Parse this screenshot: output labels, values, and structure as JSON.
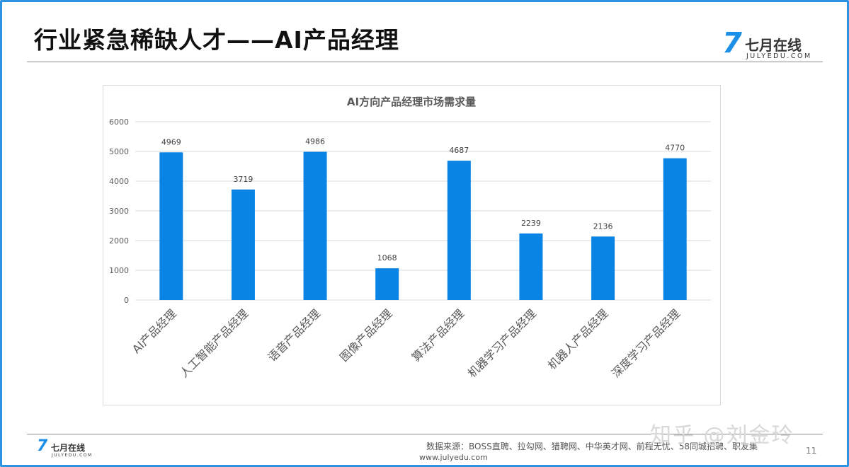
{
  "slide": {
    "title": "行业紧急稀缺人才——AI产品经理",
    "page_number": "11"
  },
  "logo": {
    "mark": "7",
    "name": "七月在线",
    "domain": "JULYEDU.COM"
  },
  "footer": {
    "source": "数据来源：BOSS直聘、拉勾网、猎聘网、中华英才网、前程无忧、58同城招聘、职友集",
    "url": "www.julyedu.com"
  },
  "watermark": "知乎 @刘金玲",
  "colors": {
    "accent": "#1e88e5",
    "bar": "#0a84e4",
    "frame": "#2c93e0"
  },
  "chart_data": {
    "type": "bar",
    "title": "AI方向产品经理市场需求量",
    "categories": [
      "AI产品经理",
      "人工智能产品经理",
      "语音产品经理",
      "图像产品经理",
      "算法产品经理",
      "机器学习产品经理",
      "机器人产品经理",
      "深度学习产品经理"
    ],
    "values": [
      4969,
      3719,
      4986,
      1068,
      4687,
      2239,
      2136,
      4770
    ],
    "ylim": [
      0,
      6000
    ],
    "yticks": [
      0,
      1000,
      2000,
      3000,
      4000,
      5000,
      6000
    ],
    "xlabel": "",
    "ylabel": "",
    "grid": true,
    "data_labels": true,
    "legend": "none"
  }
}
